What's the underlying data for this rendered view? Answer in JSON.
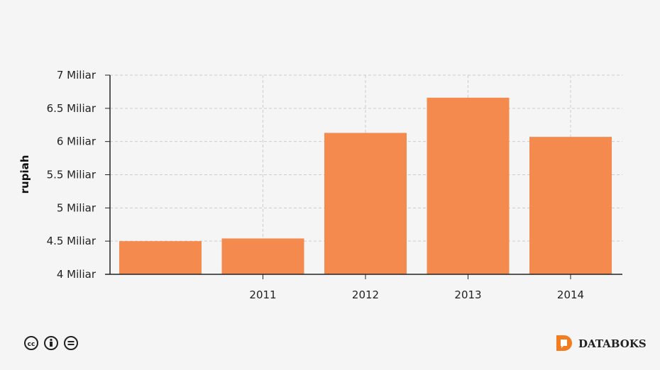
{
  "chart_data": {
    "type": "bar",
    "title": "",
    "xlabel": "",
    "ylabel": "rupiah",
    "categories": [
      "",
      "2011",
      "2012",
      "2013",
      "2014"
    ],
    "values": [
      4.5,
      4.54,
      6.13,
      6.66,
      6.07
    ],
    "unit": "Miliar",
    "ylim": [
      4,
      7
    ],
    "yticks": [
      4,
      4.5,
      5,
      5.5,
      6,
      6.5,
      7
    ],
    "ytick_labels": [
      "4 Miliar",
      "4.5 Miliar",
      "5 Miliar",
      "5.5 Miliar",
      "6 Miliar",
      "6.5 Miliar",
      "7 Miliar"
    ],
    "grid": true,
    "bar_color": "#f48a4d"
  },
  "footer": {
    "brand": "DATABOKS",
    "brand_color": "#f47c20",
    "license_icons": [
      "cc-icon",
      "by-icon",
      "nd-icon"
    ]
  }
}
